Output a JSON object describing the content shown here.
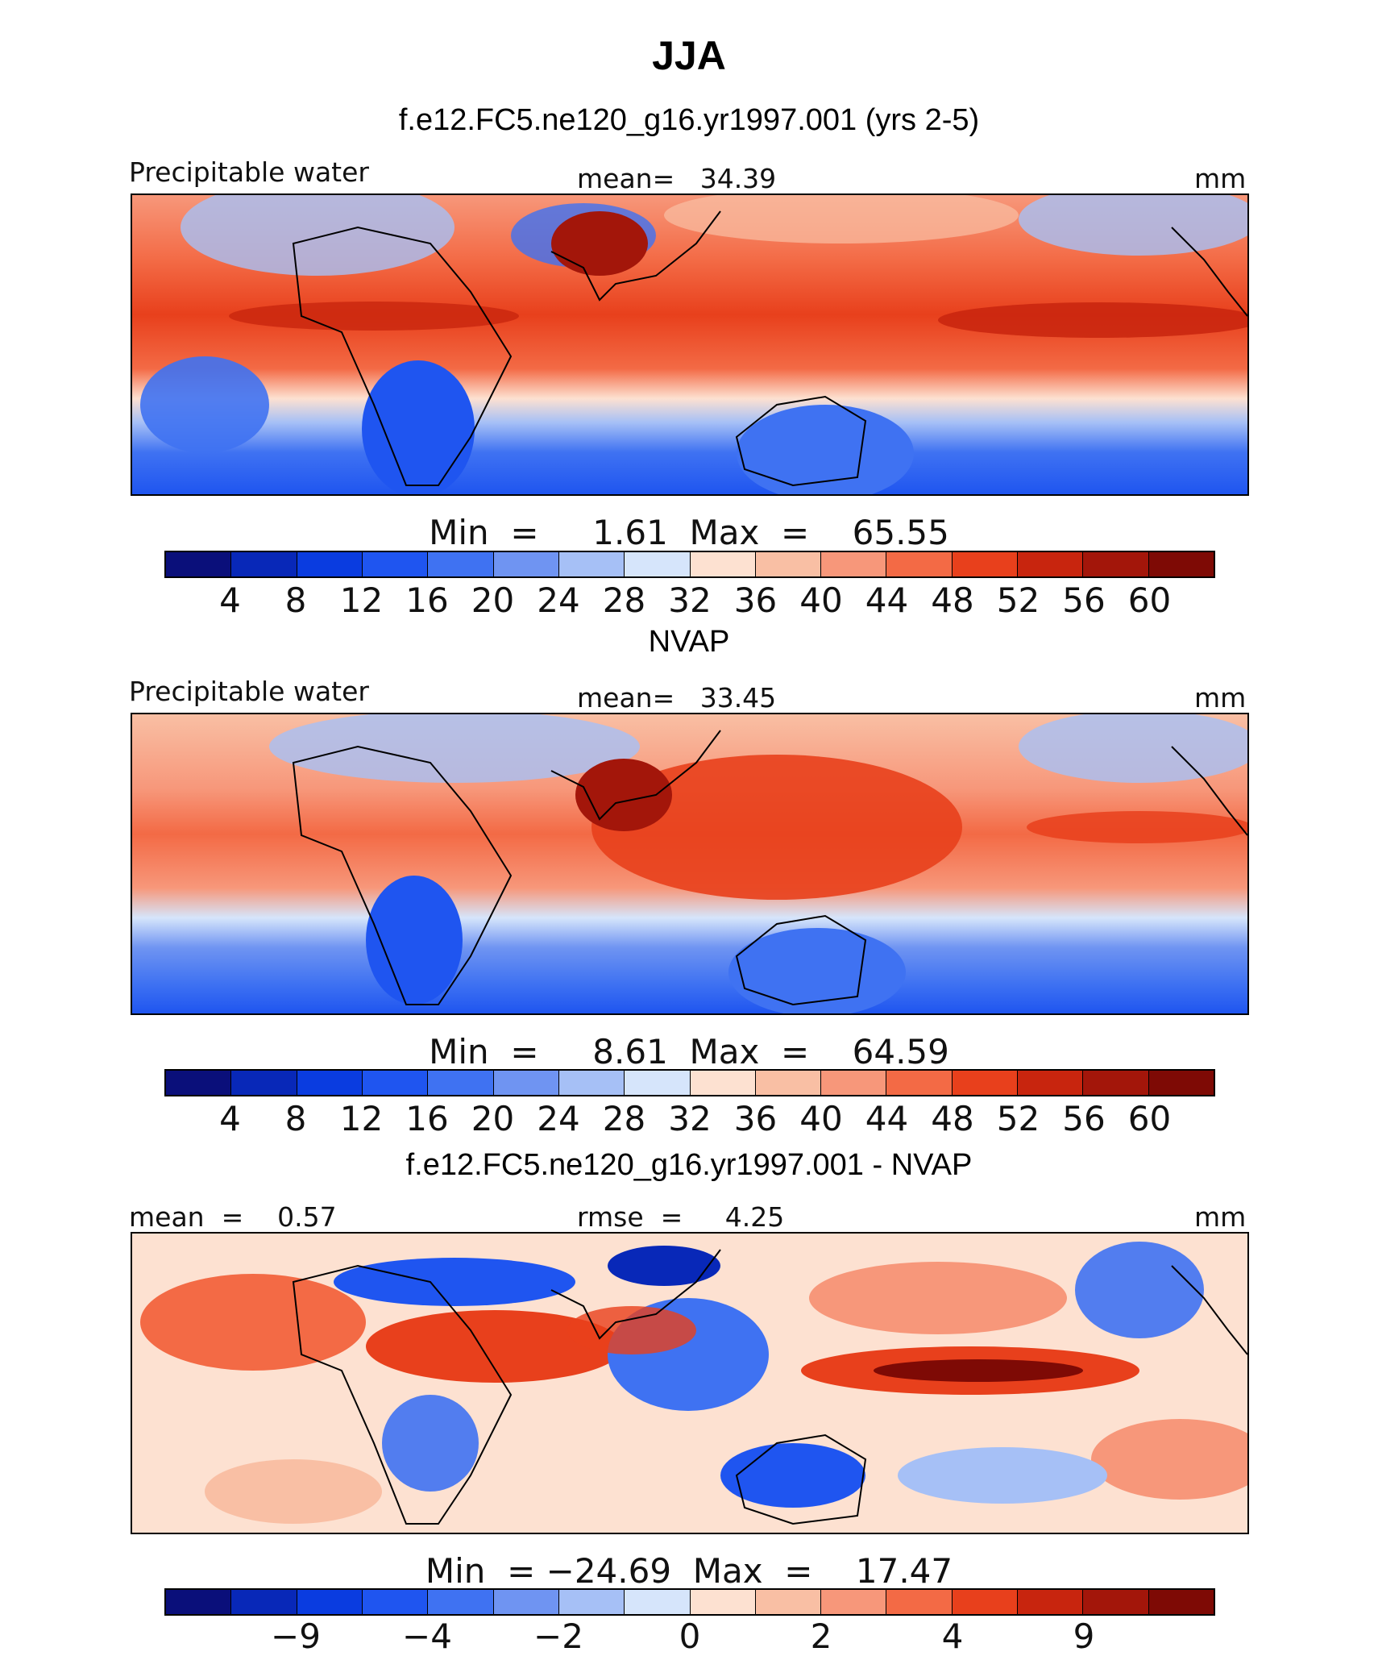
{
  "title": "JJA",
  "colors": {
    "absolute_scale": [
      "#0a0f7a",
      "#0828b8",
      "#0a3ce0",
      "#1f55f0",
      "#3f72f2",
      "#6f94f2",
      "#a6c0f6",
      "#d6e5fb",
      "#fde1d1",
      "#f9bfa4",
      "#f7977a",
      "#f36a45",
      "#e8401c",
      "#c8250e",
      "#a3160a",
      "#7e0a05"
    ],
    "diff_scale": [
      "#0a0f7a",
      "#0828b8",
      "#0a3ce0",
      "#1f55f0",
      "#3f72f2",
      "#6f94f2",
      "#a6c0f6",
      "#d6e5fb",
      "#fde1d1",
      "#f9bfa4",
      "#f7977a",
      "#f36a45",
      "#e8401c",
      "#c8250e",
      "#a3160a",
      "#7e0a05"
    ]
  },
  "panels": [
    {
      "subtitle": "f.e12.FC5.ne120_g16.yr1997.001 (yrs 2-5)",
      "left_label": "Precipitable water",
      "center_label": "mean=   34.39",
      "right_label": "mm",
      "minmax": "Min  =     1.61  Max  =    65.55",
      "ticks": [
        "4",
        "8",
        "12",
        "16",
        "20",
        "24",
        "28",
        "32",
        "36",
        "40",
        "44",
        "48",
        "52",
        "56",
        "60"
      ]
    },
    {
      "subtitle": "NVAP",
      "left_label": "Precipitable water",
      "center_label": "mean=   33.45",
      "right_label": "mm",
      "minmax": "Min  =     8.61  Max  =    64.59",
      "ticks": [
        "4",
        "8",
        "12",
        "16",
        "20",
        "24",
        "28",
        "32",
        "36",
        "40",
        "44",
        "48",
        "52",
        "56",
        "60"
      ]
    },
    {
      "subtitle": "f.e12.FC5.ne120_g16.yr1997.001 - NVAP",
      "left_label": "mean  =    0.57",
      "center_label": "rmse  =     4.25",
      "right_label": "mm",
      "minmax": "Min  = −24.69  Max  =    17.47",
      "ticks": [
        "−9",
        "−4",
        "−2",
        "0",
        "2",
        "4",
        "9"
      ]
    }
  ],
  "chart_data": [
    {
      "type": "heatmap",
      "title": "f.e12.FC5.ne120_g16.yr1997.001 (yrs 2-5)",
      "variable": "Precipitable water",
      "units": "mm",
      "mean": 34.39,
      "min": 1.61,
      "max": 65.55,
      "contour_levels": [
        4,
        8,
        12,
        16,
        20,
        24,
        28,
        32,
        36,
        40,
        44,
        48,
        52,
        56,
        60
      ]
    },
    {
      "type": "heatmap",
      "title": "NVAP",
      "variable": "Precipitable water",
      "units": "mm",
      "mean": 33.45,
      "min": 8.61,
      "max": 64.59,
      "contour_levels": [
        4,
        8,
        12,
        16,
        20,
        24,
        28,
        32,
        36,
        40,
        44,
        48,
        52,
        56,
        60
      ]
    },
    {
      "type": "heatmap",
      "title": "f.e12.FC5.ne120_g16.yr1997.001 - NVAP",
      "units": "mm",
      "mean": 0.57,
      "rmse": 4.25,
      "min": -24.69,
      "max": 17.47,
      "contour_levels": [
        -9,
        -4,
        -2,
        0,
        2,
        4,
        9
      ]
    }
  ]
}
